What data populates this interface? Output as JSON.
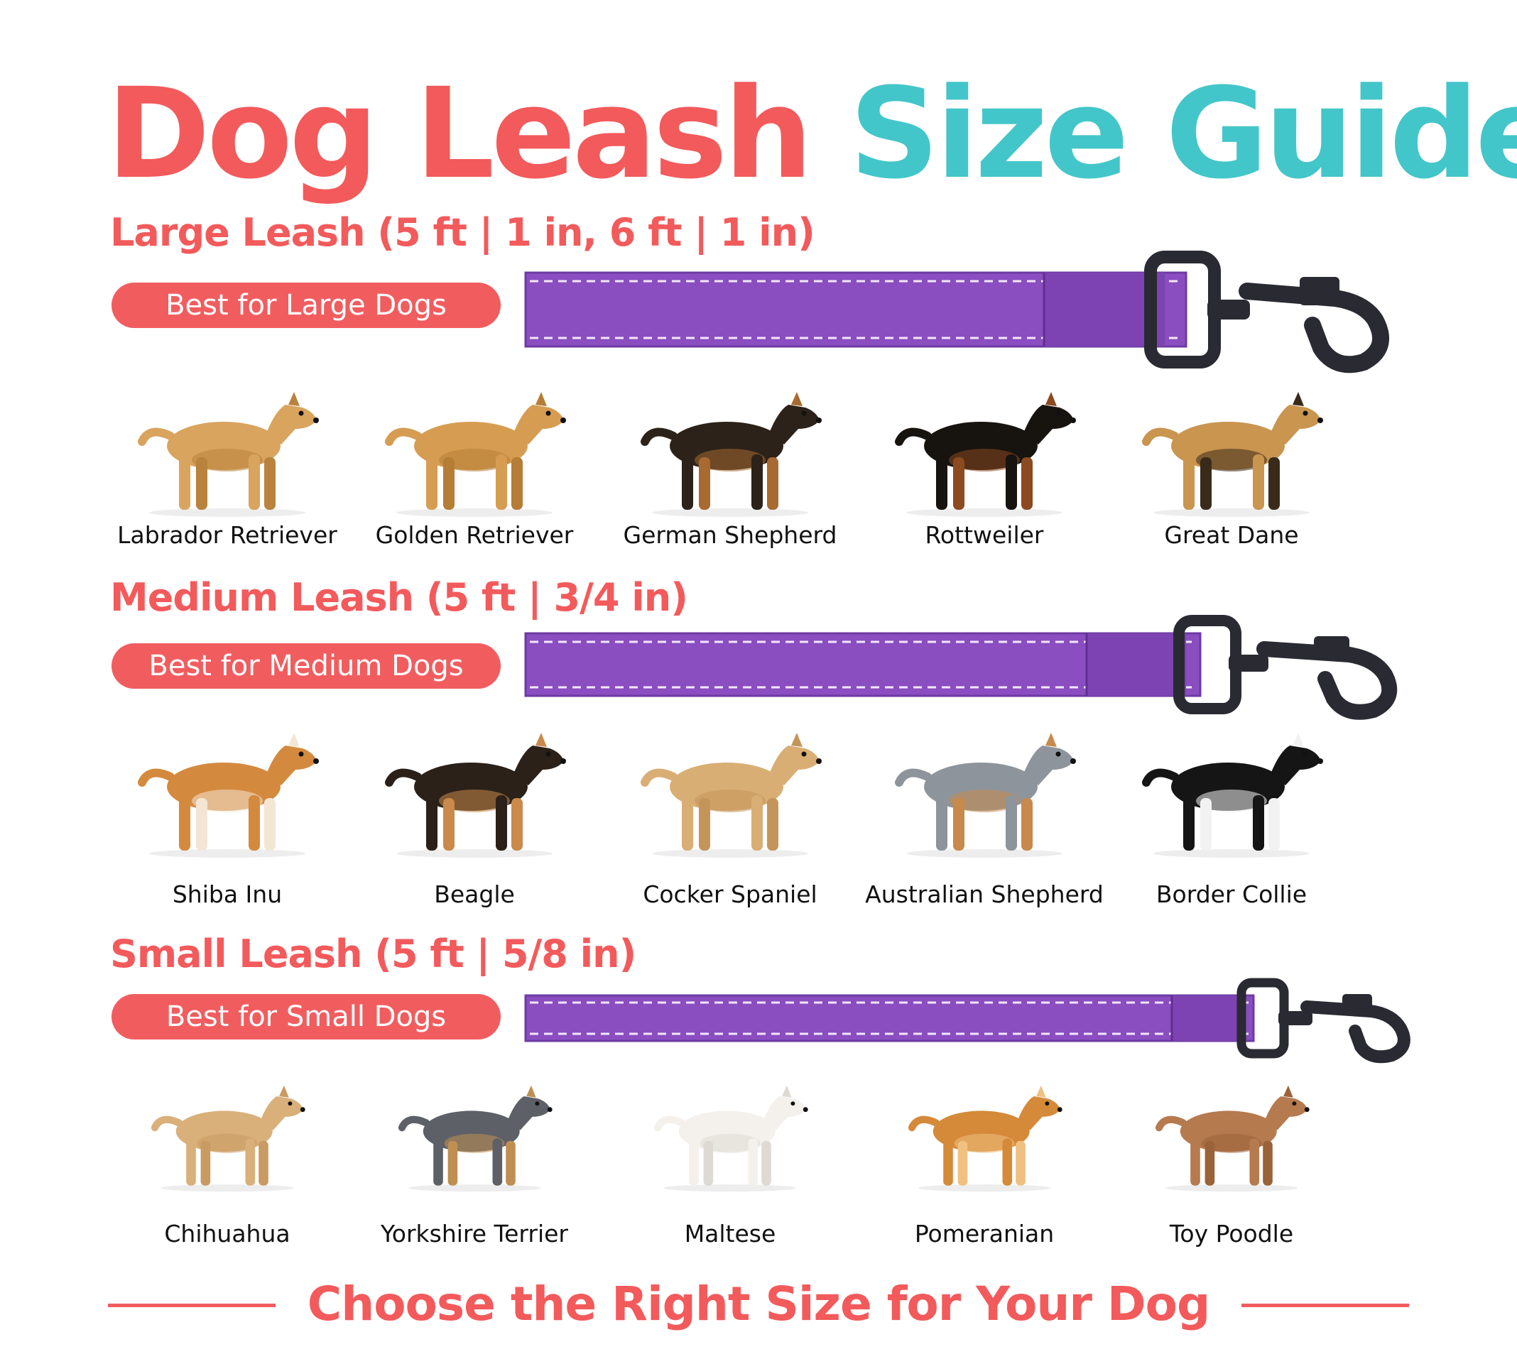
{
  "title": {
    "part1": "Dog Leash",
    "part2": "Size Guide"
  },
  "colors": {
    "coral": "#f35a5b",
    "teal": "#43c6c9",
    "purple": "#8a4ec0",
    "clip": "#2a2a33"
  },
  "sections": [
    {
      "heading": "Large Leash (5 ft | 1 in, 6 ft | 1 in)",
      "pill": "Best for Large Dogs",
      "dogs": [
        "Labrador Retriever",
        "Golden Retriever",
        "German Shepherd",
        "Rottweiler",
        "Great Dane"
      ]
    },
    {
      "heading": "Medium Leash (5 ft | 3/4 in)",
      "pill": "Best for Medium Dogs",
      "dogs": [
        "Shiba Inu",
        "Beagle",
        "Cocker Spaniel",
        "Australian Shepherd",
        "Border Collie"
      ]
    },
    {
      "heading": "Small Leash (5 ft | 5/8 in)",
      "pill": "Best for Small Dogs",
      "dogs": [
        "Chihuahua",
        "Yorkshire Terrier",
        "Maltese",
        "Pomeranian",
        "Toy Poodle"
      ]
    }
  ],
  "dog_icons": [
    [
      "labrador-retriever-photo",
      "golden-retriever-photo",
      "german-shepherd-photo",
      "rottweiler-photo",
      "great-dane-photo"
    ],
    [
      "shiba-inu-photo",
      "beagle-photo",
      "cocker-spaniel-photo",
      "australian-shepherd-photo",
      "border-collie-photo"
    ],
    [
      "chihuahua-photo",
      "yorkshire-terrier-photo",
      "maltese-photo",
      "pomeranian-photo",
      "toy-poodle-photo"
    ]
  ],
  "footer": "Choose the Right Size for Your Dog"
}
